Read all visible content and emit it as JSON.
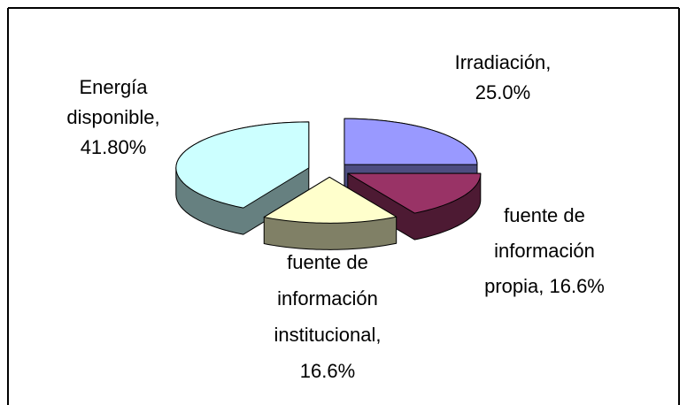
{
  "chart_data": {
    "type": "pie3d",
    "labels": [
      [
        "Irradiación,",
        "25.0%"
      ],
      [
        "fuente de",
        "información",
        "propia, 16.6%"
      ],
      [
        "fuente de",
        "información",
        "institucional,",
        "16.6%"
      ],
      [
        "Energía",
        "disponible,",
        "41.80%"
      ]
    ],
    "values": [
      25.0,
      16.6,
      16.6,
      41.8
    ],
    "colors": [
      "#9999ff",
      "#993366",
      "#ffffcc",
      "#ccffff"
    ],
    "side_colors": [
      "#4d4d80",
      "#4d1a33",
      "#808066",
      "#668080"
    ]
  }
}
